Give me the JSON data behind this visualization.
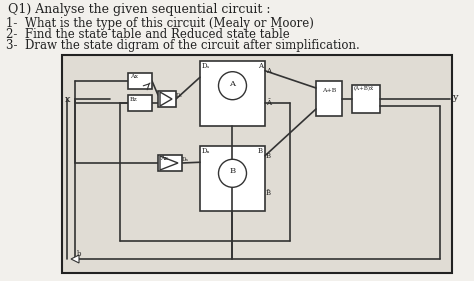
{
  "bg_color": "#e8e4de",
  "page_color": "#f2f0ec",
  "circuit_bg": "#e0dcd4",
  "title": "Q1) Analyse the given sequential circuit :",
  "items": [
    "1-  What is the type of this circuit (Mealy or Moore)",
    "2-  Find the state table and Reduced state table",
    "3-  Draw the state digram of the circuit after simplification."
  ],
  "title_fs": 9,
  "item_fs": 8.5
}
